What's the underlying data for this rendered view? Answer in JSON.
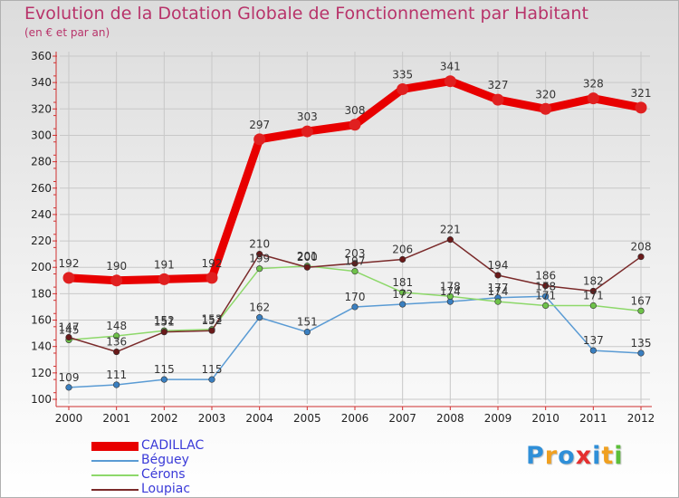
{
  "title": "Evolution de la Dotation Globale de Fonctionnement par Habitant",
  "subtitle": "(en € et par an)",
  "logo": {
    "letters": [
      "P",
      "r",
      "o",
      "x",
      "i",
      "t",
      "i"
    ],
    "colors": [
      "#2f8fd8",
      "#f0a020",
      "#2f8fd8",
      "#e53030",
      "#2f8fd8",
      "#f0a020",
      "#5cbf3a"
    ]
  },
  "chart_data": {
    "type": "line",
    "title": "Evolution de la Dotation Globale de Fonctionnement par Habitant",
    "subtitle": "(en € et par an)",
    "xlabel": "",
    "ylabel": "",
    "x": [
      "2000",
      "2001",
      "2002",
      "2003",
      "2004",
      "2005",
      "2006",
      "2007",
      "2008",
      "2009",
      "2010",
      "2011",
      "2012"
    ],
    "ylim": [
      100,
      360
    ],
    "yticks": [
      100,
      120,
      140,
      160,
      180,
      200,
      220,
      240,
      260,
      280,
      300,
      320,
      340,
      360
    ],
    "grid": true,
    "legend_position": "bottom-left",
    "series": [
      {
        "name": "CADILLAC",
        "color": "#e80000",
        "markerColor": "#e02020",
        "values": [
          192,
          190,
          191,
          192,
          297,
          303,
          308,
          335,
          341,
          327,
          320,
          328,
          321
        ],
        "labels": [
          "192",
          "190",
          "191",
          "192",
          "297",
          "303",
          "308",
          "335",
          "341",
          "327",
          "320",
          "328",
          "321"
        ]
      },
      {
        "name": "Béguey",
        "color": "#5a9bd4",
        "markerColor": "#3a7fc0",
        "values": [
          109,
          111,
          115,
          115,
          162,
          151,
          170,
          172,
          174,
          177,
          178,
          137,
          135
        ],
        "labels": [
          "109",
          "111",
          "115",
          "115",
          "162",
          "151",
          "170",
          "172",
          "174",
          "177",
          "178",
          "137",
          "135"
        ]
      },
      {
        "name": "Cérons",
        "color": "#8dd86a",
        "markerColor": "#6fc24a",
        "values": [
          145,
          148,
          152,
          153,
          199,
          201,
          197,
          181,
          178,
          174,
          171,
          171,
          167
        ],
        "labels": [
          "145",
          "148",
          "152",
          "153",
          "199",
          "201",
          "197",
          "181",
          "178",
          "174",
          "171",
          "171",
          "167"
        ]
      },
      {
        "name": "Loupiac",
        "color": "#7a2a2a",
        "markerColor": "#6a1a1a",
        "values": [
          147,
          136,
          151,
          152,
          210,
          200,
          203,
          206,
          221,
          194,
          186,
          182,
          208
        ],
        "labels": [
          "147",
          "136",
          "151",
          "152",
          "210",
          "200",
          "203",
          "206",
          "221",
          "194",
          "186",
          "182",
          "208"
        ]
      }
    ]
  }
}
